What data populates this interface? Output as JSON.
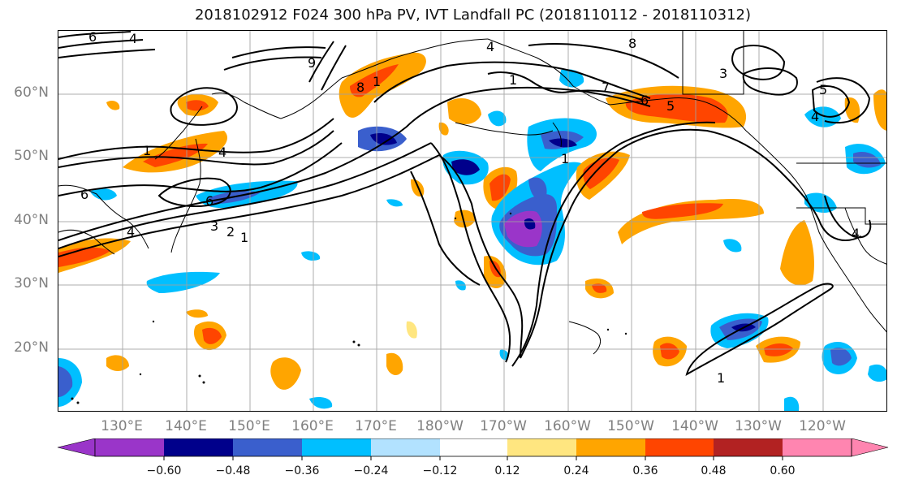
{
  "title": "2018102912 F024 300 hPa PV, IVT Landfall PC (2018110112 - 2018110312)",
  "lat_labels": [
    "60°N",
    "50°N",
    "40°N",
    "30°N",
    "20°N"
  ],
  "lon_labels": [
    "130°E",
    "140°E",
    "150°E",
    "160°E",
    "170°E",
    "180°W",
    "170°W",
    "160°W",
    "150°W",
    "140°W",
    "130°W",
    "120°W"
  ],
  "colorbar": {
    "ticks": [
      "−0.60",
      "−0.48",
      "−0.36",
      "−0.24",
      "−0.12",
      "0.12",
      "0.24",
      "0.36",
      "0.48",
      "0.60"
    ],
    "colors": [
      "#9a35c9",
      "#00008b",
      "#3a5fcd",
      "#00bfff",
      "#b2e2ff",
      "#ffffff",
      "#ffe680",
      "#ffa500",
      "#ff4500",
      "#b22222",
      "#ff85b0"
    ]
  },
  "contour_labels": [
    "1",
    "2",
    "3",
    "4",
    "5",
    "6",
    "7",
    "8",
    "9"
  ],
  "colors": {
    "contour": "#000000",
    "grid": "#a0a0a0",
    "axis_label": "#808080"
  }
}
